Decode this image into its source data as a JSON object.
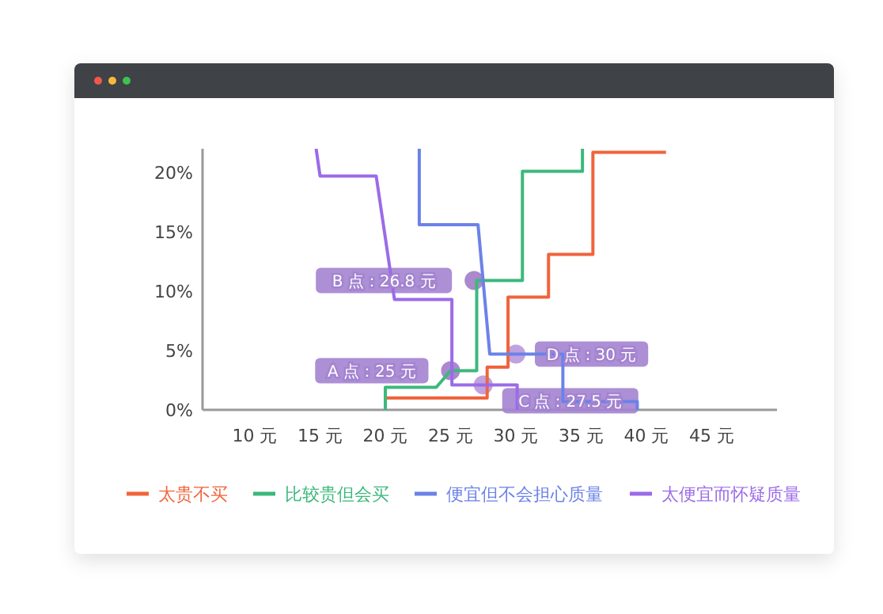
{
  "chart_data": {
    "type": "line",
    "xlim": [
      6,
      50
    ],
    "ylim": [
      0,
      22
    ],
    "xticks": [
      {
        "value": 10,
        "label": "10 元"
      },
      {
        "value": 15,
        "label": "15 元"
      },
      {
        "value": 20,
        "label": "20 元"
      },
      {
        "value": 25,
        "label": "25 元"
      },
      {
        "value": 30,
        "label": "30 元"
      },
      {
        "value": 35,
        "label": "35 元"
      },
      {
        "value": 40,
        "label": "40 元"
      },
      {
        "value": 45,
        "label": "45 元"
      }
    ],
    "yticks": [
      {
        "value": 0,
        "label": "0%"
      },
      {
        "value": 5,
        "label": "5%"
      },
      {
        "value": 10,
        "label": "10%"
      },
      {
        "value": 15,
        "label": "15%"
      },
      {
        "value": 20,
        "label": "20%"
      }
    ],
    "grid": false,
    "legend": "bottom",
    "marker": "none",
    "line_style": "solid",
    "series": [
      {
        "name": "太贵不买",
        "color": "#f0643c",
        "x": [
          20,
          27.8,
          27.8,
          29.4,
          29.4,
          32.5,
          32.5,
          35.9,
          35.9,
          41.5
        ],
        "values": [
          1,
          1,
          3.6,
          3.6,
          9.5,
          9.5,
          13.1,
          13.1,
          21.7,
          21.7
        ]
      },
      {
        "name": "比较贵但会买",
        "color": "#3cb87c",
        "x": [
          20,
          20,
          23.9,
          25,
          27,
          27,
          30.5,
          30.5,
          35.1,
          35.1
        ],
        "values": [
          0,
          1.9,
          1.9,
          3.3,
          3.3,
          10.9,
          10.9,
          20.1,
          20.1,
          22
        ]
      },
      {
        "name": "便宜但不会担心质量",
        "color": "#6b82e8",
        "x": [
          22.6,
          22.6,
          27.1,
          28,
          33.6,
          33.6,
          39.3,
          39.3
        ],
        "values": [
          22,
          15.6,
          15.6,
          4.7,
          4.7,
          0.7,
          0.7,
          0
        ]
      },
      {
        "name": "太便宜而怀疑质量",
        "color": "#9b6be8",
        "x": [
          14.7,
          15,
          19.3,
          20.7,
          25.1,
          25.1,
          30.1,
          30.1
        ],
        "values": [
          22,
          19.7,
          19.7,
          9.3,
          9.3,
          2.1,
          2.1,
          0
        ]
      }
    ],
    "annotations": [
      {
        "text": "A 点：25 元",
        "x": 25,
        "y": 3.3
      },
      {
        "text": "B 点：26.8 元",
        "x": 26.8,
        "y": 10.9
      },
      {
        "text": "C 点：27.5 元",
        "x": 27.5,
        "y": 2.1
      },
      {
        "text": "D 点：30 元",
        "x": 30,
        "y": 4.7
      }
    ]
  }
}
